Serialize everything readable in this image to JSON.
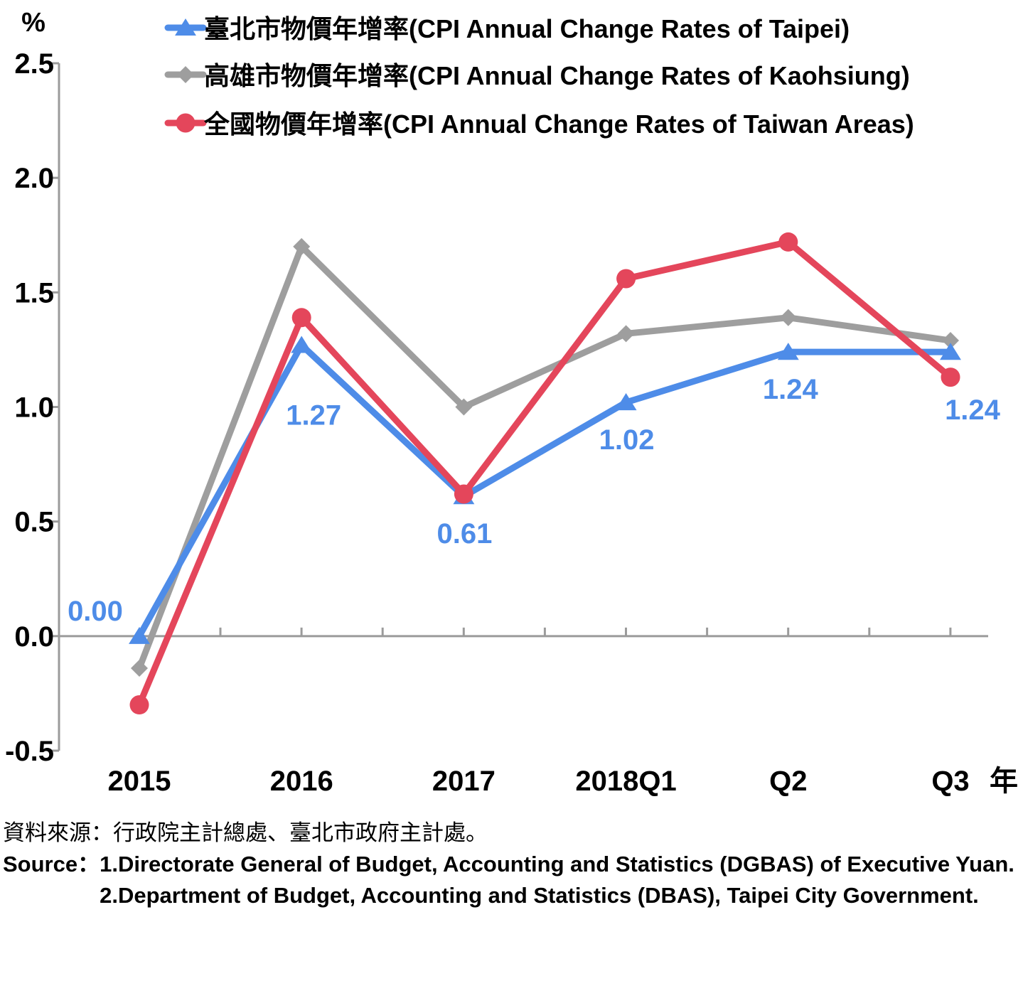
{
  "chart_data": {
    "type": "line",
    "ylabel": "%",
    "xlabel": "年",
    "ylim": [
      -0.5,
      2.5
    ],
    "yticks": [
      "2.5",
      "2.0",
      "1.5",
      "1.0",
      "0.5",
      "0.0",
      "-0.5"
    ],
    "categories": [
      "2015",
      "2016",
      "2017",
      "2018Q1",
      "Q2",
      "Q3"
    ],
    "legend_position": "top-right",
    "series": [
      {
        "name": "臺北市物價年增率(CPI Annual Change Rates of Taipei)",
        "color": "#4E8CE8",
        "marker": "triangle",
        "values": [
          0.0,
          1.27,
          0.61,
          1.02,
          1.24,
          1.24
        ],
        "data_labels": [
          "0.00",
          "1.27",
          "0.61",
          "1.02",
          "1.24",
          "1.24"
        ]
      },
      {
        "name": "高雄市物價年增率(CPI Annual Change Rates of Kaohsiung)",
        "color": "#9E9E9E",
        "marker": "diamond",
        "values": [
          -0.14,
          1.7,
          1.0,
          1.32,
          1.39,
          1.29
        ]
      },
      {
        "name": "全國物價年增率(CPI Annual Change Rates of Taiwan Areas)",
        "color": "#E4465B",
        "marker": "circle",
        "values": [
          -0.3,
          1.39,
          0.62,
          1.56,
          1.72,
          1.13
        ]
      }
    ]
  },
  "source": {
    "cn": "資料來源：行政院主計總處、臺北市政府主計處。",
    "en_label": "Source：",
    "en_items": [
      "1.Directorate General of Budget, Accounting and Statistics (DGBAS) of Executive Yuan.",
      "2.Department of Budget, Accounting and Statistics (DBAS), Taipei City Government."
    ]
  }
}
